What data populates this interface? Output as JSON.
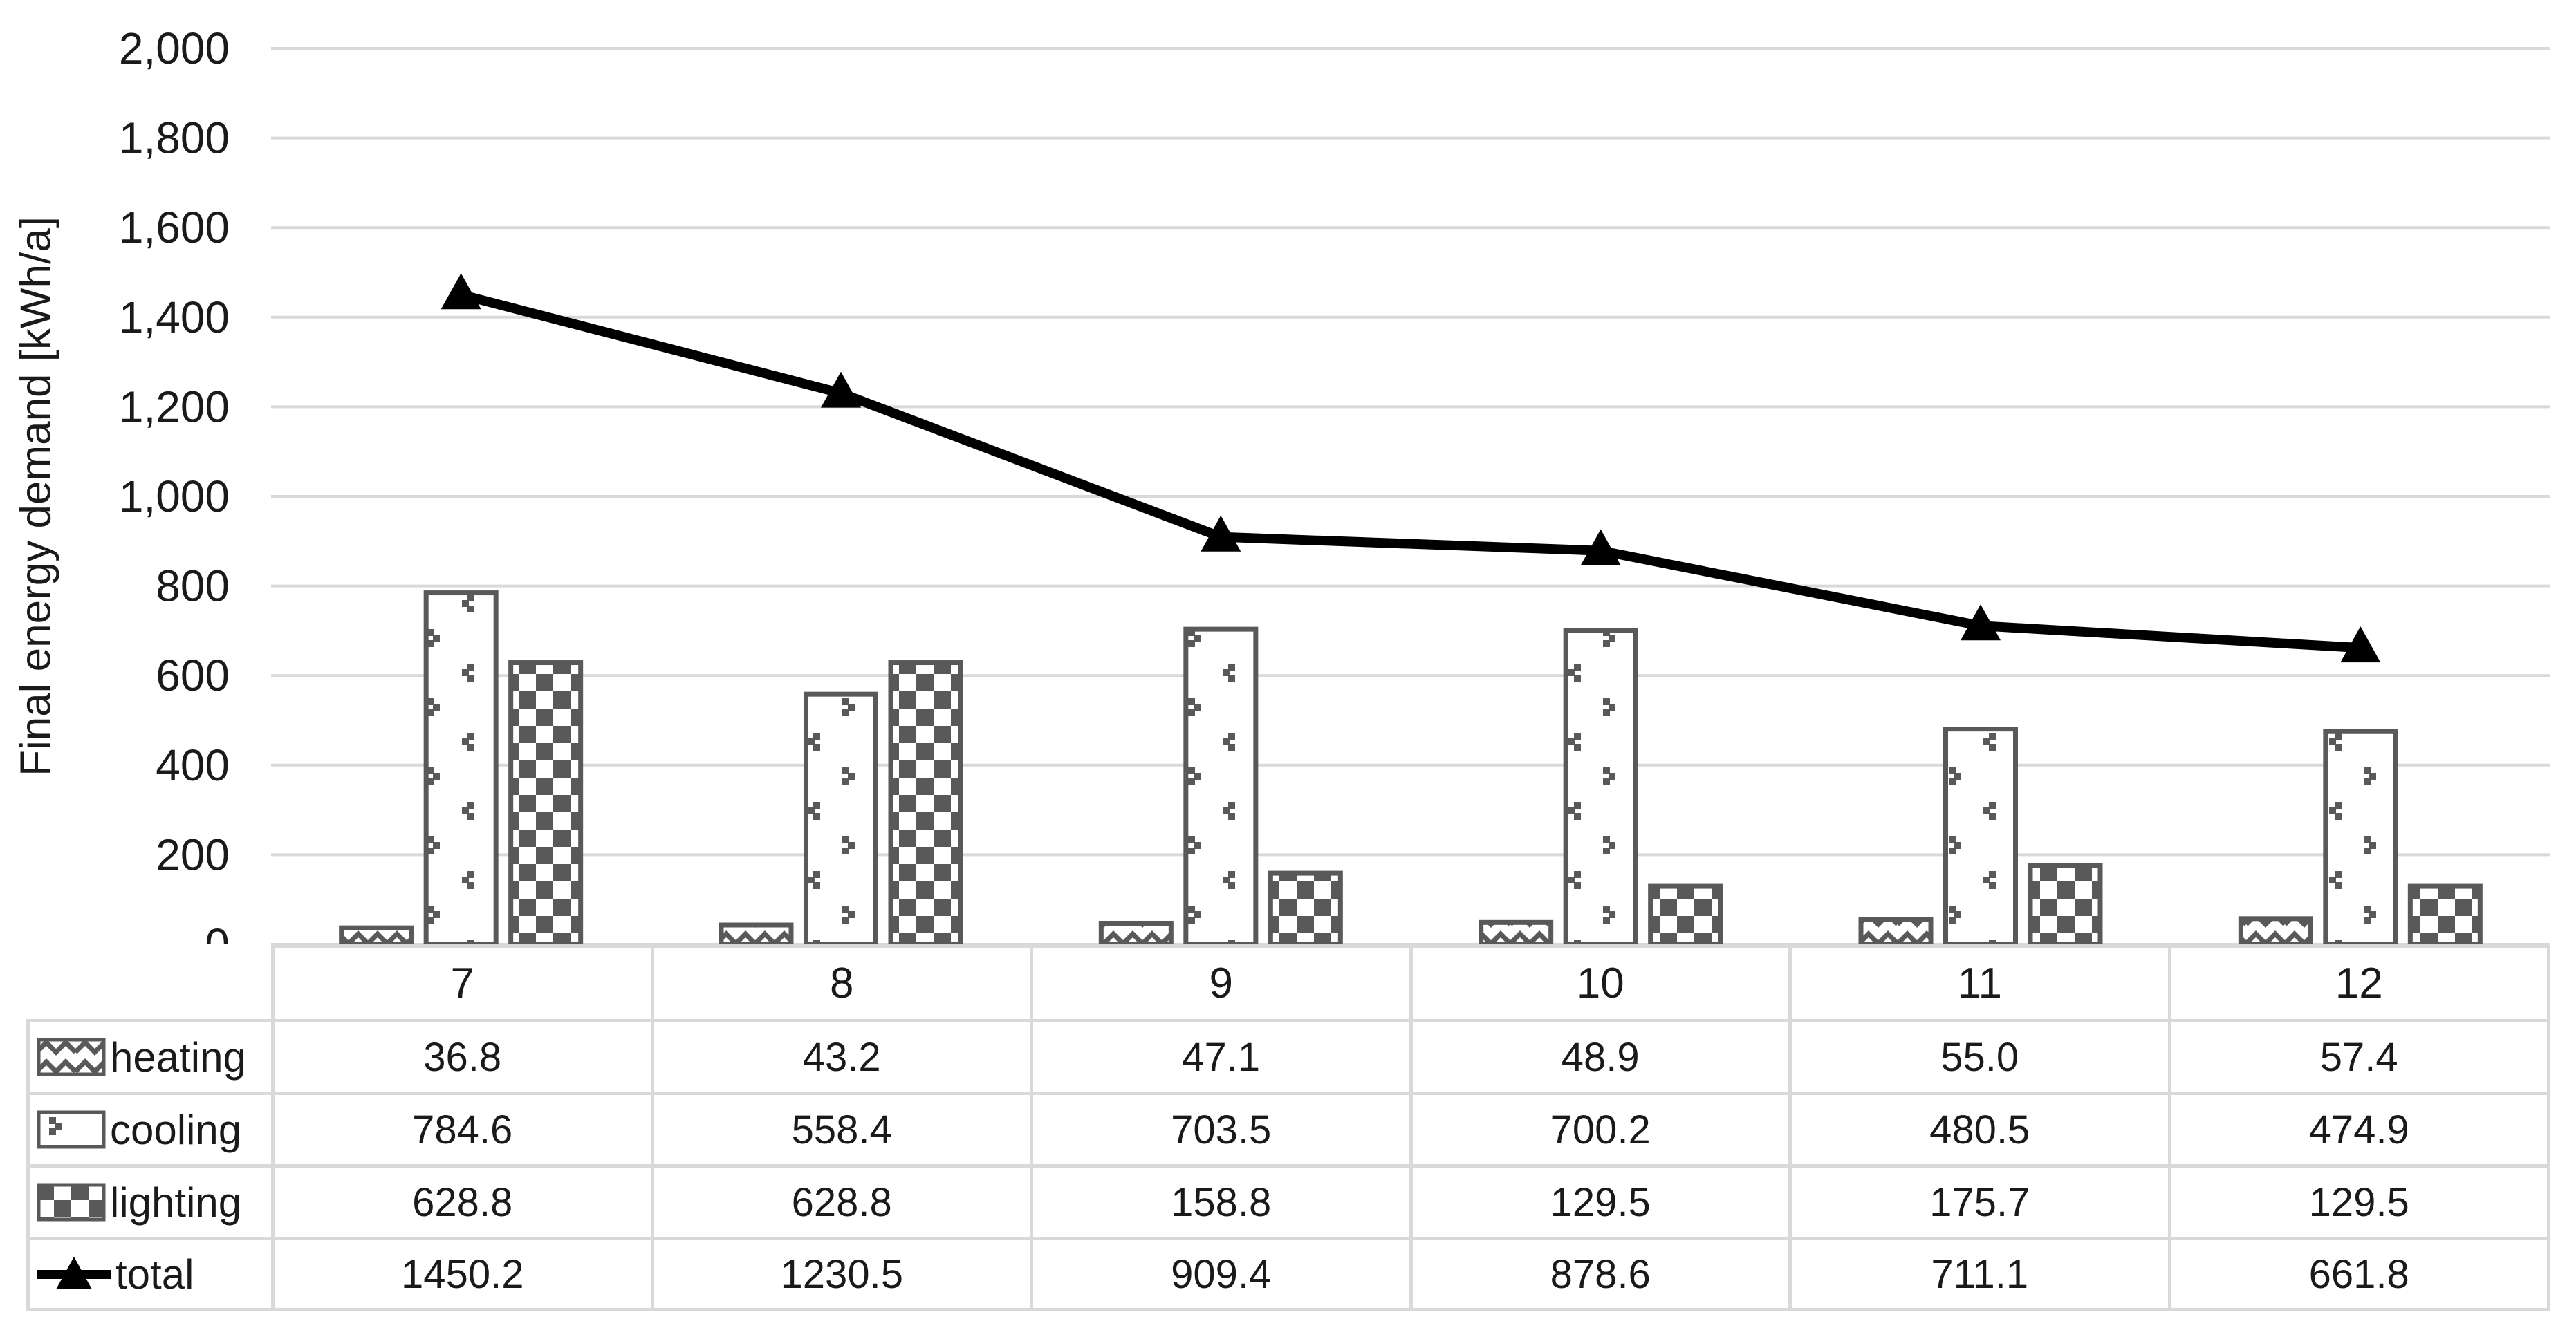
{
  "colors": {
    "background": "#ffffff",
    "bar_outline": "#595959",
    "pattern_fill": "#595959",
    "line_series": "#000000",
    "gridline": "#D9D9D9",
    "table_border": "#D9D9D9",
    "text": "#1a1a1a"
  },
  "chart_data": {
    "type": "bar+line",
    "title": "",
    "xlabel": "",
    "ylabel": "Final energy demand [kWh/a]",
    "ylim": [
      0,
      2000
    ],
    "ytick_step": 200,
    "yticks": [
      "0",
      "200",
      "400",
      "600",
      "800",
      "1,000",
      "1,200",
      "1,400",
      "1,600",
      "1,800",
      "2,000"
    ],
    "grid": true,
    "legend_position": "table-left",
    "categories": [
      "7",
      "8",
      "9",
      "10",
      "11",
      "12"
    ],
    "series": [
      {
        "name": "heating",
        "type": "bar",
        "pattern": "wave",
        "values": [
          36.8,
          43.2,
          47.1,
          48.9,
          55.0,
          57.4
        ]
      },
      {
        "name": "cooling",
        "type": "bar",
        "pattern": "dots",
        "values": [
          784.6,
          558.4,
          703.5,
          700.2,
          480.5,
          474.9
        ]
      },
      {
        "name": "lighting",
        "type": "bar",
        "pattern": "checker",
        "values": [
          628.8,
          628.8,
          158.8,
          129.5,
          175.7,
          129.5
        ]
      },
      {
        "name": "total",
        "type": "line",
        "marker": "triangle",
        "values": [
          1450.2,
          1230.5,
          909.4,
          878.6,
          711.1,
          661.8
        ]
      }
    ]
  },
  "table": {
    "header": [
      "7",
      "8",
      "9",
      "10",
      "11",
      "12"
    ],
    "rows": [
      {
        "label": "heating",
        "swatch": "wave",
        "values": [
          "36.8",
          "43.2",
          "47.1",
          "48.9",
          "55.0",
          "57.4"
        ]
      },
      {
        "label": "cooling",
        "swatch": "dots",
        "values": [
          "784.6",
          "558.4",
          "703.5",
          "700.2",
          "480.5",
          "474.9"
        ]
      },
      {
        "label": "lighting",
        "swatch": "checker",
        "values": [
          "628.8",
          "628.8",
          "158.8",
          "129.5",
          "175.7",
          "129.5"
        ]
      },
      {
        "label": "total",
        "swatch": "line-triangle",
        "values": [
          "1450.2",
          "1230.5",
          "909.4",
          "878.6",
          "711.1",
          "661.8"
        ]
      }
    ]
  }
}
